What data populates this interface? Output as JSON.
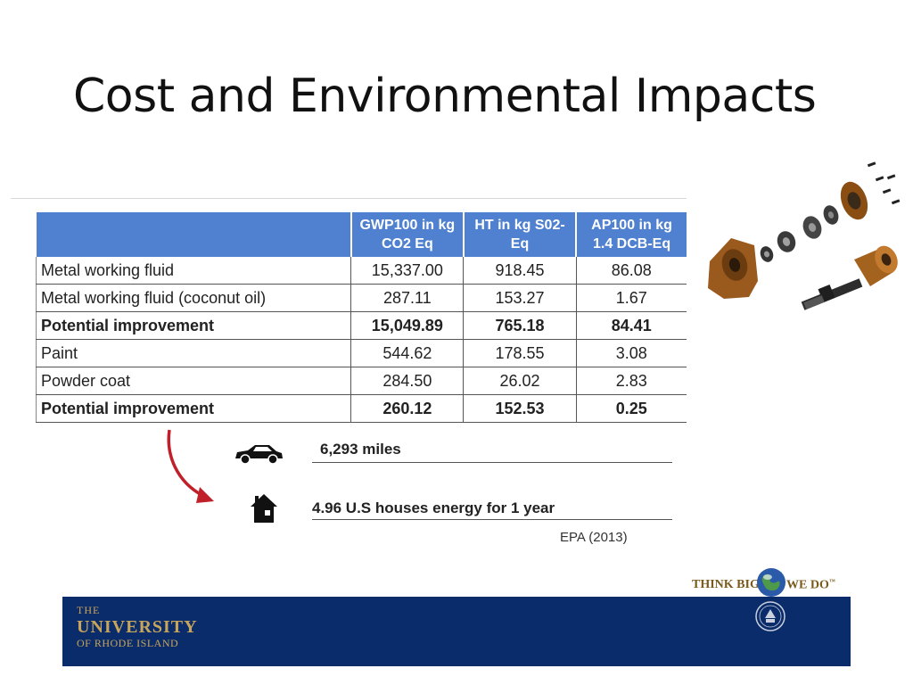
{
  "slide": {
    "title": "Cost and Environmental Impacts"
  },
  "table": {
    "headers": [
      "",
      "GWP100 in kg CO2 Eq",
      "HT in kg S02-Eq",
      "AP100 in kg 1.4 DCB-Eq"
    ],
    "rows": [
      {
        "label": "Metal working fluid",
        "gwp": "15,337.00",
        "ht": "918.45",
        "ap": "86.08",
        "bold": false
      },
      {
        "label": "Metal working fluid (coconut oil)",
        "gwp": "287.11",
        "ht": "153.27",
        "ap": "1.67",
        "bold": false
      },
      {
        "label": "Potential improvement",
        "gwp": "15,049.89",
        "ht": "765.18",
        "ap": "84.41",
        "bold": true
      },
      {
        "label": "Paint",
        "gwp": "544.62",
        "ht": "178.55",
        "ap": "3.08",
        "bold": false
      },
      {
        "label": "Powder coat",
        "gwp": "284.50",
        "ht": "26.02",
        "ap": "2.83",
        "bold": false
      },
      {
        "label": "Potential improvement",
        "gwp": "260.12",
        "ht": "152.53",
        "ap": "0.25",
        "bold": true
      }
    ]
  },
  "equivalents": {
    "miles": "6,293 miles",
    "houses": "4.96 U.S houses energy for 1 year",
    "source": "EPA (2013)"
  },
  "branding": {
    "tag_left": "THINK BIG",
    "tag_right": "WE DO",
    "tm": "™",
    "logo_the": "THE",
    "logo_university": "UNIVERSITY",
    "logo_ri": "OF RHODE ISLAND",
    "footer_color": "#0b2c6b",
    "gold": "#c7a55a"
  },
  "icons": {
    "car": "car-icon",
    "house": "house-icon",
    "arrow": "curved-arrow-icon",
    "globe": "globe-icon",
    "seal": "university-seal-icon",
    "parts": "exploded-bearing-assembly-image"
  }
}
